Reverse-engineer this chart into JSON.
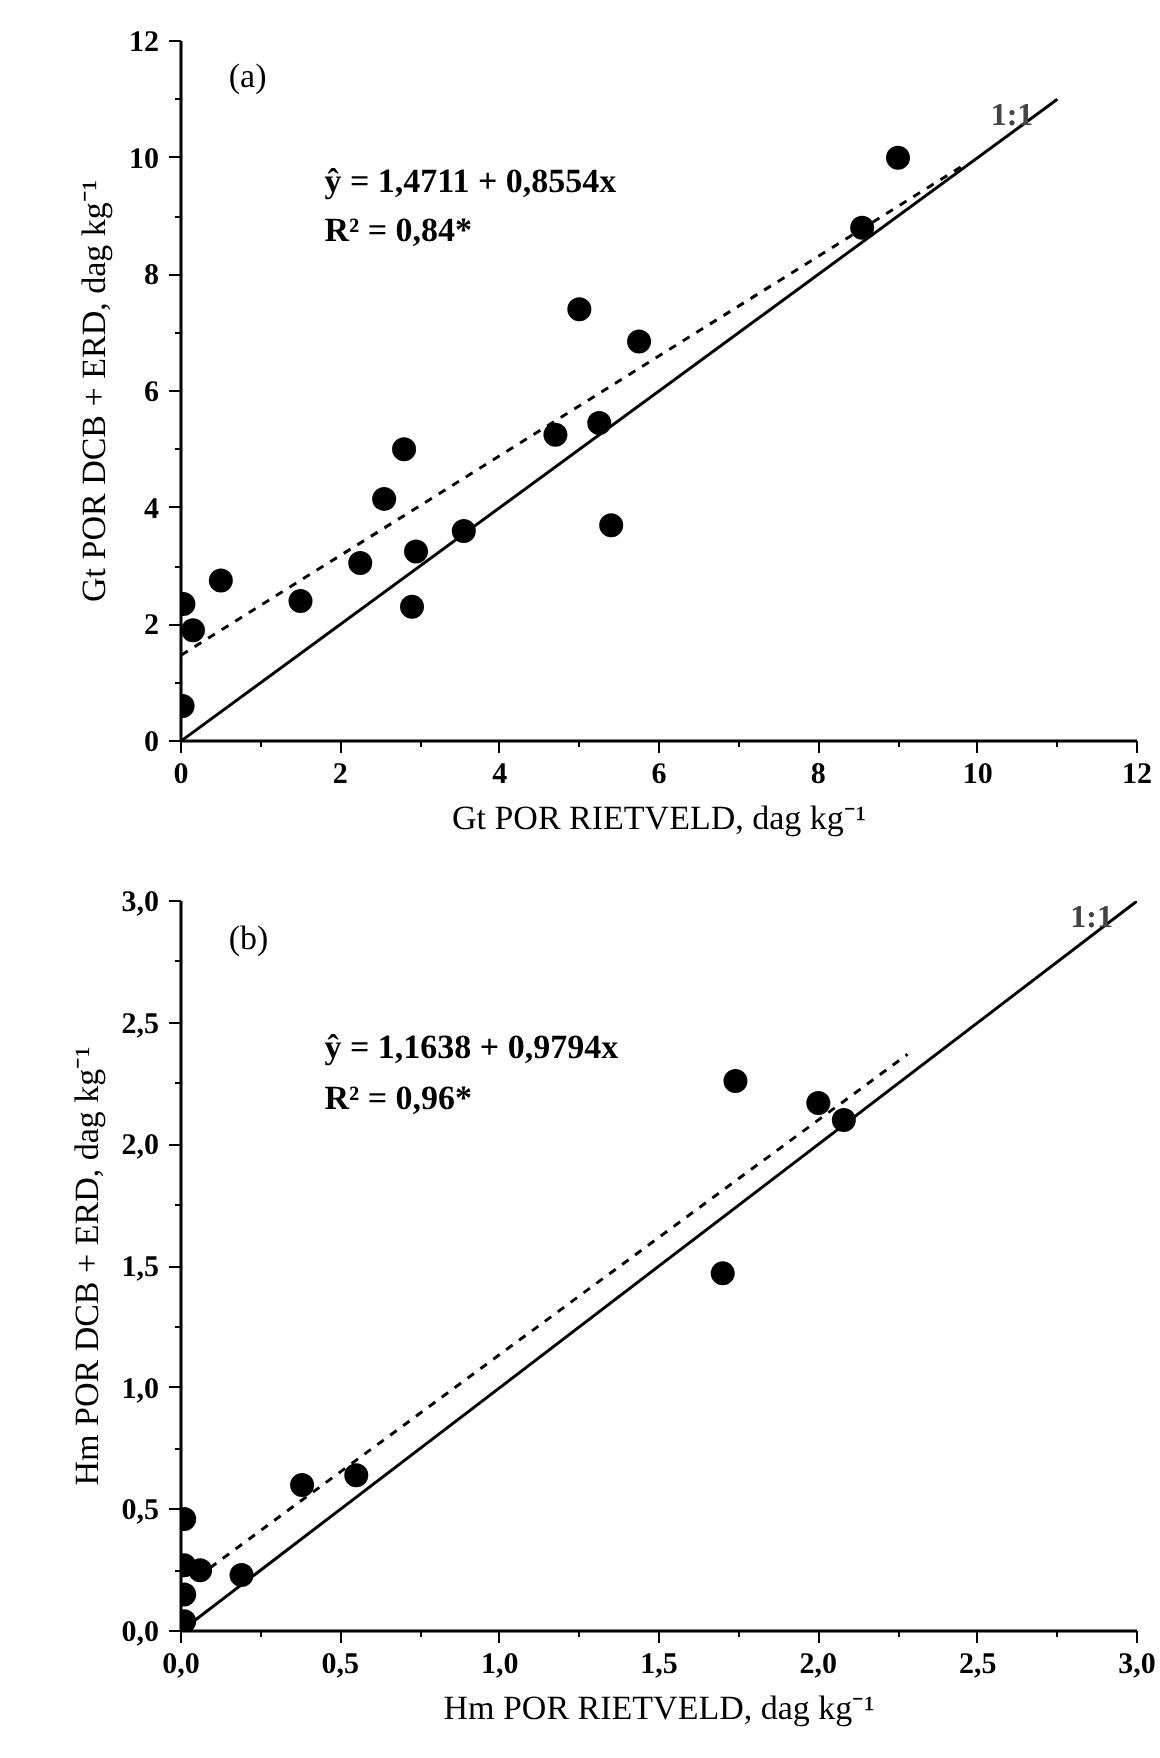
{
  "chart_data": [
    {
      "type": "scatter",
      "xlabel": "Gt POR RIETVELD, dag kg⁻¹",
      "ylabel": "Gt POR DCB + ERD, dag kg⁻¹",
      "xlim": [
        0,
        12
      ],
      "ylim": [
        0,
        12
      ],
      "xticks": [
        0,
        2,
        4,
        6,
        8,
        10,
        12
      ],
      "yticks": [
        0,
        2,
        4,
        6,
        8,
        10,
        12
      ],
      "grid": false,
      "legend": false,
      "annotations": [
        "(a)",
        "ŷ  = 1,4711 + 0,8554x",
        "R² = 0,84*"
      ],
      "series": [
        {
          "marker": "circle",
          "color": "#000000",
          "x": [
            0.02,
            0.03,
            0.15,
            0.5,
            1.5,
            2.25,
            2.55,
            2.8,
            2.95,
            2.9,
            3.55,
            4.7,
            5.0,
            5.25,
            5.4,
            5.75,
            8.55,
            9.0
          ],
          "values": [
            0.6,
            2.35,
            1.9,
            2.75,
            2.4,
            3.05,
            4.15,
            5.0,
            3.25,
            2.3,
            3.6,
            5.25,
            7.4,
            5.45,
            3.7,
            6.85,
            8.8,
            10.0
          ]
        },
        {
          "type": "line",
          "color": "#000000",
          "line_style": "dashed",
          "x": [
            0,
            9.8
          ],
          "values": [
            1.47,
            9.85
          ]
        },
        {
          "type": "line",
          "name": "1:1",
          "color": "#000000",
          "line_style": "solid",
          "x": [
            0,
            11
          ],
          "values": [
            0,
            11
          ]
        }
      ]
    },
    {
      "type": "scatter",
      "xlabel": "Hm POR RIETVELD, dag kg⁻¹",
      "ylabel": "Hm POR DCB + ERD, dag kg⁻¹",
      "xlim": [
        0,
        3
      ],
      "ylim": [
        0,
        3
      ],
      "xticks": [
        {
          "value": 0,
          "label": "0,0"
        },
        {
          "value": 0.5,
          "label": "0,5"
        },
        {
          "value": 1,
          "label": "1,0"
        },
        {
          "value": 1.5,
          "label": "1,5"
        },
        {
          "value": 2,
          "label": "2,0"
        },
        {
          "value": 2.5,
          "label": "2,5"
        },
        {
          "value": 3,
          "label": "3,0"
        }
      ],
      "yticks": [
        {
          "value": 0,
          "label": "0,0"
        },
        {
          "value": 0.5,
          "label": "0,5"
        },
        {
          "value": 1,
          "label": "1,0"
        },
        {
          "value": 1.5,
          "label": "1,5"
        },
        {
          "value": 2,
          "label": "2,0"
        },
        {
          "value": 2.5,
          "label": "2,5"
        },
        {
          "value": 3,
          "label": "3,0"
        }
      ],
      "grid": false,
      "legend": false,
      "annotations": [
        "(b)",
        "ŷ  = 1,1638 + 0,9794x",
        "R² = 0,96*"
      ],
      "series": [
        {
          "marker": "circle",
          "color": "#000000",
          "x": [
            0.01,
            0.01,
            0.06,
            0.19,
            0.38,
            0.55,
            1.7,
            1.74,
            2.0,
            2.08,
            0.01,
            0.01
          ],
          "values": [
            0.46,
            0.27,
            0.25,
            0.23,
            0.6,
            0.64,
            1.47,
            2.26,
            2.17,
            2.1,
            0.04,
            0.15
          ]
        },
        {
          "type": "line",
          "color": "#000000",
          "line_style": "dashed",
          "x": [
            0.05,
            2.28
          ],
          "values": [
            0.22,
            2.37
          ]
        },
        {
          "type": "line",
          "name": "1:1",
          "color": "#000000",
          "line_style": "solid",
          "x": [
            0,
            3
          ],
          "values": [
            0,
            3
          ]
        }
      ]
    }
  ]
}
